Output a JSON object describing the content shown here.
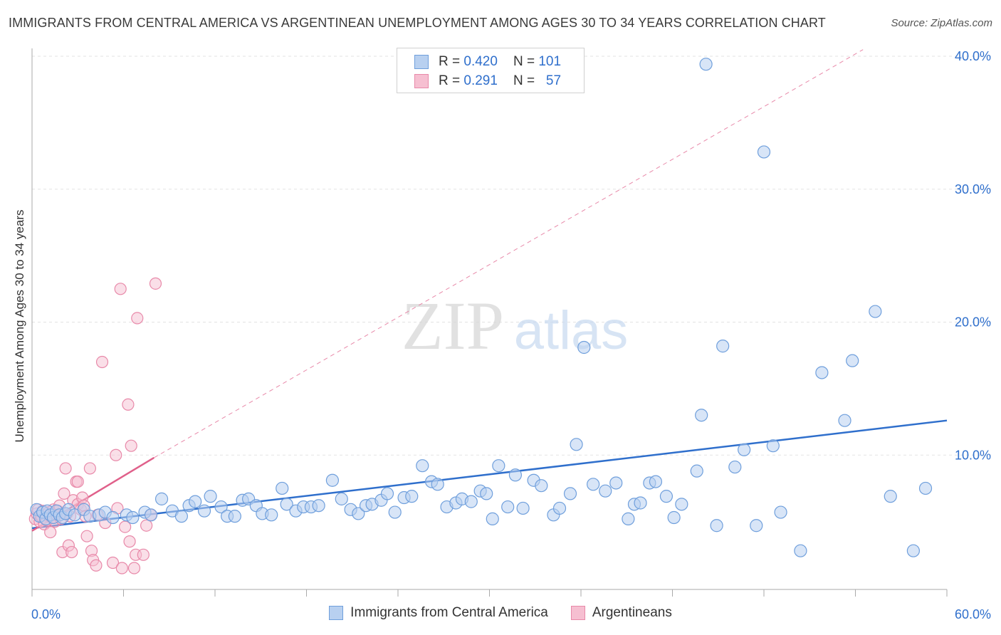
{
  "title": "IMMIGRANTS FROM CENTRAL AMERICA VS ARGENTINEAN UNEMPLOYMENT AMONG AGES 30 TO 34 YEARS CORRELATION CHART",
  "source": "Source: ZipAtlas.com",
  "watermark": {
    "zip": "ZIP",
    "atlas": "atlas"
  },
  "legend": {
    "r_label": "R =",
    "n_label": "N =",
    "rows": [
      {
        "r": "0.420",
        "n": "101"
      },
      {
        "r": "0.291",
        "n": "57"
      }
    ]
  },
  "colors": {
    "blue_fill": "#b8d0f0",
    "blue_stroke": "#6f9fdc",
    "blue_line": "#2f6fcc",
    "pink_fill": "#f6bfd1",
    "pink_stroke": "#e889a9",
    "pink_line": "#e0608a",
    "tick_text": "#2f6fcc"
  },
  "chart_data": {
    "type": "scatter",
    "title": "IMMIGRANTS FROM CENTRAL AMERICA VS ARGENTINEAN UNEMPLOYMENT AMONG AGES 30 TO 34 YEARS CORRELATION CHART",
    "xlabel": "",
    "ylabel": "Unemployment Among Ages 30 to 34 years",
    "xlim": [
      0,
      60
    ],
    "ylim": [
      0,
      40
    ],
    "x_tick_labels": [
      "0.0%",
      "60.0%"
    ],
    "y_ticks": [
      10,
      20,
      30,
      40
    ],
    "y_tick_labels": [
      "10.0%",
      "20.0%",
      "30.0%",
      "40.0%"
    ],
    "grid": true,
    "series": [
      {
        "name": "Immigrants from Central America",
        "R": 0.42,
        "N": 101,
        "trend": {
          "x": [
            0,
            60
          ],
          "y": [
            4.5,
            12.6
          ],
          "dashed": false
        },
        "points": [
          [
            0.3,
            5.9
          ],
          [
            0.5,
            5.4
          ],
          [
            0.7,
            5.7
          ],
          [
            0.9,
            5.2
          ],
          [
            1.0,
            5.8
          ],
          [
            1.2,
            5.5
          ],
          [
            1.4,
            5.3
          ],
          [
            1.6,
            5.8
          ],
          [
            1.8,
            5.5
          ],
          [
            2.0,
            5.3
          ],
          [
            2.2,
            5.6
          ],
          [
            2.4,
            5.9
          ],
          [
            2.8,
            5.5
          ],
          [
            3.4,
            5.9
          ],
          [
            3.8,
            5.4
          ],
          [
            4.4,
            5.5
          ],
          [
            4.8,
            5.7
          ],
          [
            5.3,
            5.3
          ],
          [
            6.2,
            5.5
          ],
          [
            6.6,
            5.3
          ],
          [
            7.4,
            5.7
          ],
          [
            7.8,
            5.5
          ],
          [
            8.5,
            6.7
          ],
          [
            9.2,
            5.8
          ],
          [
            9.8,
            5.4
          ],
          [
            10.3,
            6.2
          ],
          [
            10.7,
            6.5
          ],
          [
            11.3,
            5.8
          ],
          [
            11.7,
            6.9
          ],
          [
            12.4,
            6.1
          ],
          [
            12.8,
            5.4
          ],
          [
            13.3,
            5.4
          ],
          [
            13.8,
            6.6
          ],
          [
            14.2,
            6.7
          ],
          [
            14.7,
            6.2
          ],
          [
            15.1,
            5.6
          ],
          [
            15.7,
            5.5
          ],
          [
            16.4,
            7.5
          ],
          [
            16.7,
            6.3
          ],
          [
            17.3,
            5.8
          ],
          [
            17.8,
            6.1
          ],
          [
            18.3,
            6.1
          ],
          [
            18.8,
            6.2
          ],
          [
            19.7,
            8.1
          ],
          [
            20.3,
            6.7
          ],
          [
            20.9,
            5.9
          ],
          [
            21.4,
            5.6
          ],
          [
            21.9,
            6.2
          ],
          [
            22.3,
            6.3
          ],
          [
            22.9,
            6.6
          ],
          [
            23.3,
            7.1
          ],
          [
            23.8,
            5.7
          ],
          [
            24.4,
            6.8
          ],
          [
            24.9,
            6.9
          ],
          [
            25.6,
            9.2
          ],
          [
            26.2,
            8.0
          ],
          [
            26.6,
            7.8
          ],
          [
            27.2,
            6.1
          ],
          [
            27.8,
            6.4
          ],
          [
            28.2,
            6.7
          ],
          [
            28.8,
            6.5
          ],
          [
            29.4,
            7.3
          ],
          [
            29.8,
            7.1
          ],
          [
            30.2,
            5.2
          ],
          [
            30.6,
            9.2
          ],
          [
            31.2,
            6.1
          ],
          [
            31.7,
            8.5
          ],
          [
            32.2,
            6.0
          ],
          [
            32.9,
            8.1
          ],
          [
            33.4,
            7.7
          ],
          [
            34.2,
            5.5
          ],
          [
            34.6,
            6.0
          ],
          [
            35.3,
            7.1
          ],
          [
            35.7,
            10.8
          ],
          [
            36.2,
            18.1
          ],
          [
            36.8,
            7.8
          ],
          [
            37.6,
            7.3
          ],
          [
            38.3,
            7.9
          ],
          [
            39.1,
            5.2
          ],
          [
            39.5,
            6.3
          ],
          [
            39.9,
            6.4
          ],
          [
            40.5,
            7.9
          ],
          [
            40.9,
            8.0
          ],
          [
            41.6,
            6.9
          ],
          [
            42.1,
            5.3
          ],
          [
            42.6,
            6.3
          ],
          [
            43.6,
            8.8
          ],
          [
            43.9,
            13.0
          ],
          [
            44.2,
            39.4
          ],
          [
            44.9,
            4.7
          ],
          [
            45.3,
            18.2
          ],
          [
            46.1,
            9.1
          ],
          [
            46.7,
            10.4
          ],
          [
            47.5,
            4.7
          ],
          [
            48.0,
            32.8
          ],
          [
            48.6,
            10.7
          ],
          [
            49.1,
            5.7
          ],
          [
            50.4,
            2.8
          ],
          [
            51.8,
            16.2
          ],
          [
            53.3,
            12.6
          ],
          [
            53.8,
            17.1
          ],
          [
            55.3,
            20.8
          ],
          [
            56.3,
            6.9
          ],
          [
            57.8,
            2.8
          ],
          [
            58.6,
            7.5
          ]
        ]
      },
      {
        "name": "Argentineans",
        "R": 0.291,
        "N": 57,
        "trend": {
          "x": [
            0,
            8.0
          ],
          "y": [
            4.3,
            9.8
          ],
          "dashed": false
        },
        "trend_extension": {
          "x": [
            8.0,
            54.5
          ],
          "y": [
            9.8,
            40.5
          ],
          "dashed": true
        },
        "points": [
          [
            0.2,
            5.2
          ],
          [
            0.3,
            5.6
          ],
          [
            0.4,
            5.9
          ],
          [
            0.5,
            5.0
          ],
          [
            0.6,
            5.4
          ],
          [
            0.7,
            5.8
          ],
          [
            0.8,
            4.8
          ],
          [
            0.9,
            5.5
          ],
          [
            1.0,
            5.1
          ],
          [
            1.1,
            5.7
          ],
          [
            1.2,
            4.2
          ],
          [
            1.3,
            5.3
          ],
          [
            1.4,
            5.9
          ],
          [
            1.5,
            5.0
          ],
          [
            1.6,
            5.5
          ],
          [
            1.7,
            5.8
          ],
          [
            1.8,
            6.2
          ],
          [
            1.9,
            5.2
          ],
          [
            2.0,
            2.7
          ],
          [
            2.1,
            7.1
          ],
          [
            2.2,
            9.0
          ],
          [
            2.3,
            5.6
          ],
          [
            2.4,
            3.2
          ],
          [
            2.5,
            5.4
          ],
          [
            2.6,
            2.7
          ],
          [
            2.7,
            6.6
          ],
          [
            2.9,
            8.0
          ],
          [
            3.0,
            6.3
          ],
          [
            3.0,
            8.0
          ],
          [
            3.2,
            5.9
          ],
          [
            3.3,
            6.8
          ],
          [
            3.4,
            6.2
          ],
          [
            3.5,
            5.4
          ],
          [
            3.6,
            3.9
          ],
          [
            3.8,
            9.0
          ],
          [
            3.9,
            2.8
          ],
          [
            4.0,
            2.1
          ],
          [
            4.2,
            1.7
          ],
          [
            4.3,
            5.5
          ],
          [
            4.6,
            17.0
          ],
          [
            4.8,
            4.9
          ],
          [
            5.3,
            1.9
          ],
          [
            5.5,
            10.0
          ],
          [
            5.6,
            6.0
          ],
          [
            5.8,
            22.5
          ],
          [
            5.9,
            1.5
          ],
          [
            6.1,
            4.6
          ],
          [
            6.3,
            13.8
          ],
          [
            6.4,
            3.5
          ],
          [
            6.5,
            10.7
          ],
          [
            6.7,
            1.5
          ],
          [
            6.8,
            2.5
          ],
          [
            6.9,
            20.3
          ],
          [
            7.3,
            2.5
          ],
          [
            7.5,
            4.7
          ],
          [
            7.8,
            5.5
          ],
          [
            8.1,
            22.9
          ]
        ]
      }
    ]
  }
}
